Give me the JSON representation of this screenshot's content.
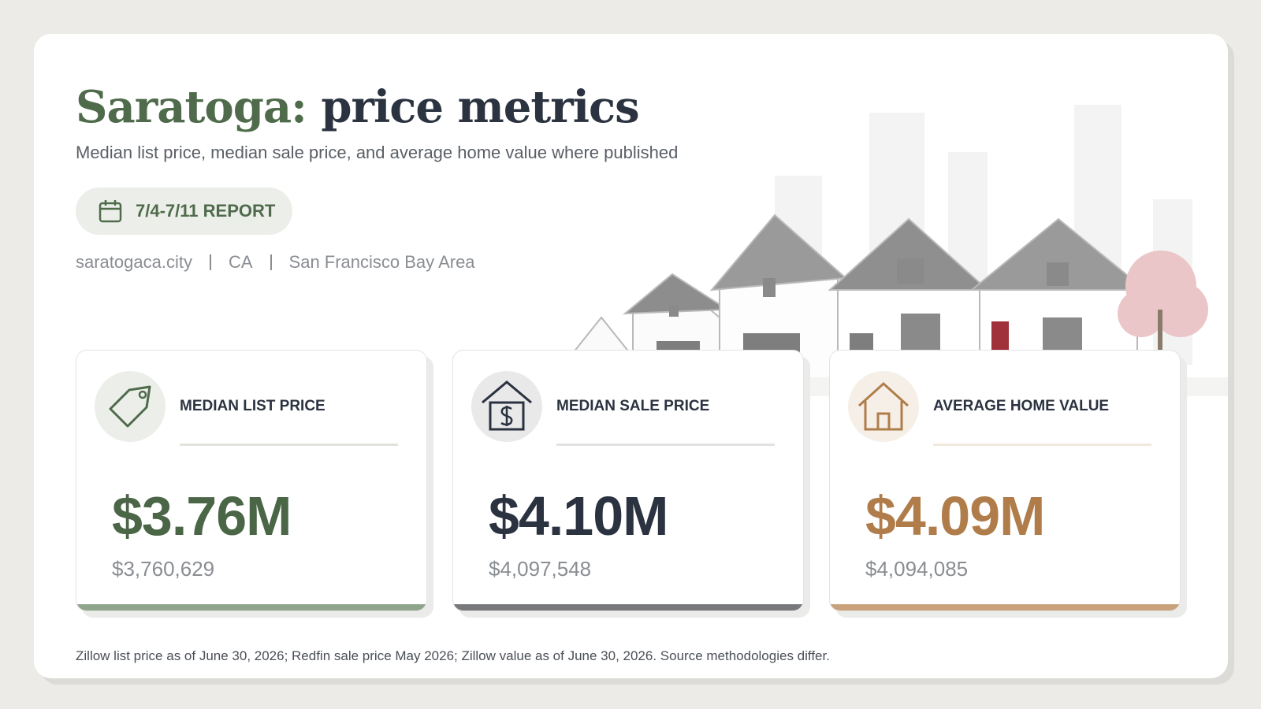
{
  "header": {
    "title_place": "Saratoga:",
    "title_rest": "price metrics",
    "subtitle": "Median list price, median sale price, and average home value where published",
    "badge": "7/4-7/11 REPORT",
    "location": [
      "saratogaca.city",
      "CA",
      "San Francisco Bay Area"
    ]
  },
  "cards": [
    {
      "label": "MEDIAN LIST PRICE",
      "value": "$3.76M",
      "exact": "$3,760,629"
    },
    {
      "label": "MEDIAN SALE PRICE",
      "value": "$4.10M",
      "exact": "$4,097,548"
    },
    {
      "label": "AVERAGE HOME VALUE",
      "value": "$4.09M",
      "exact": "$4,094,085"
    }
  ],
  "footnote": "Zillow list price as of June 30, 2026; Redfin sale price May 2026; Zillow value as of June 30, 2026. Source methodologies differ."
}
